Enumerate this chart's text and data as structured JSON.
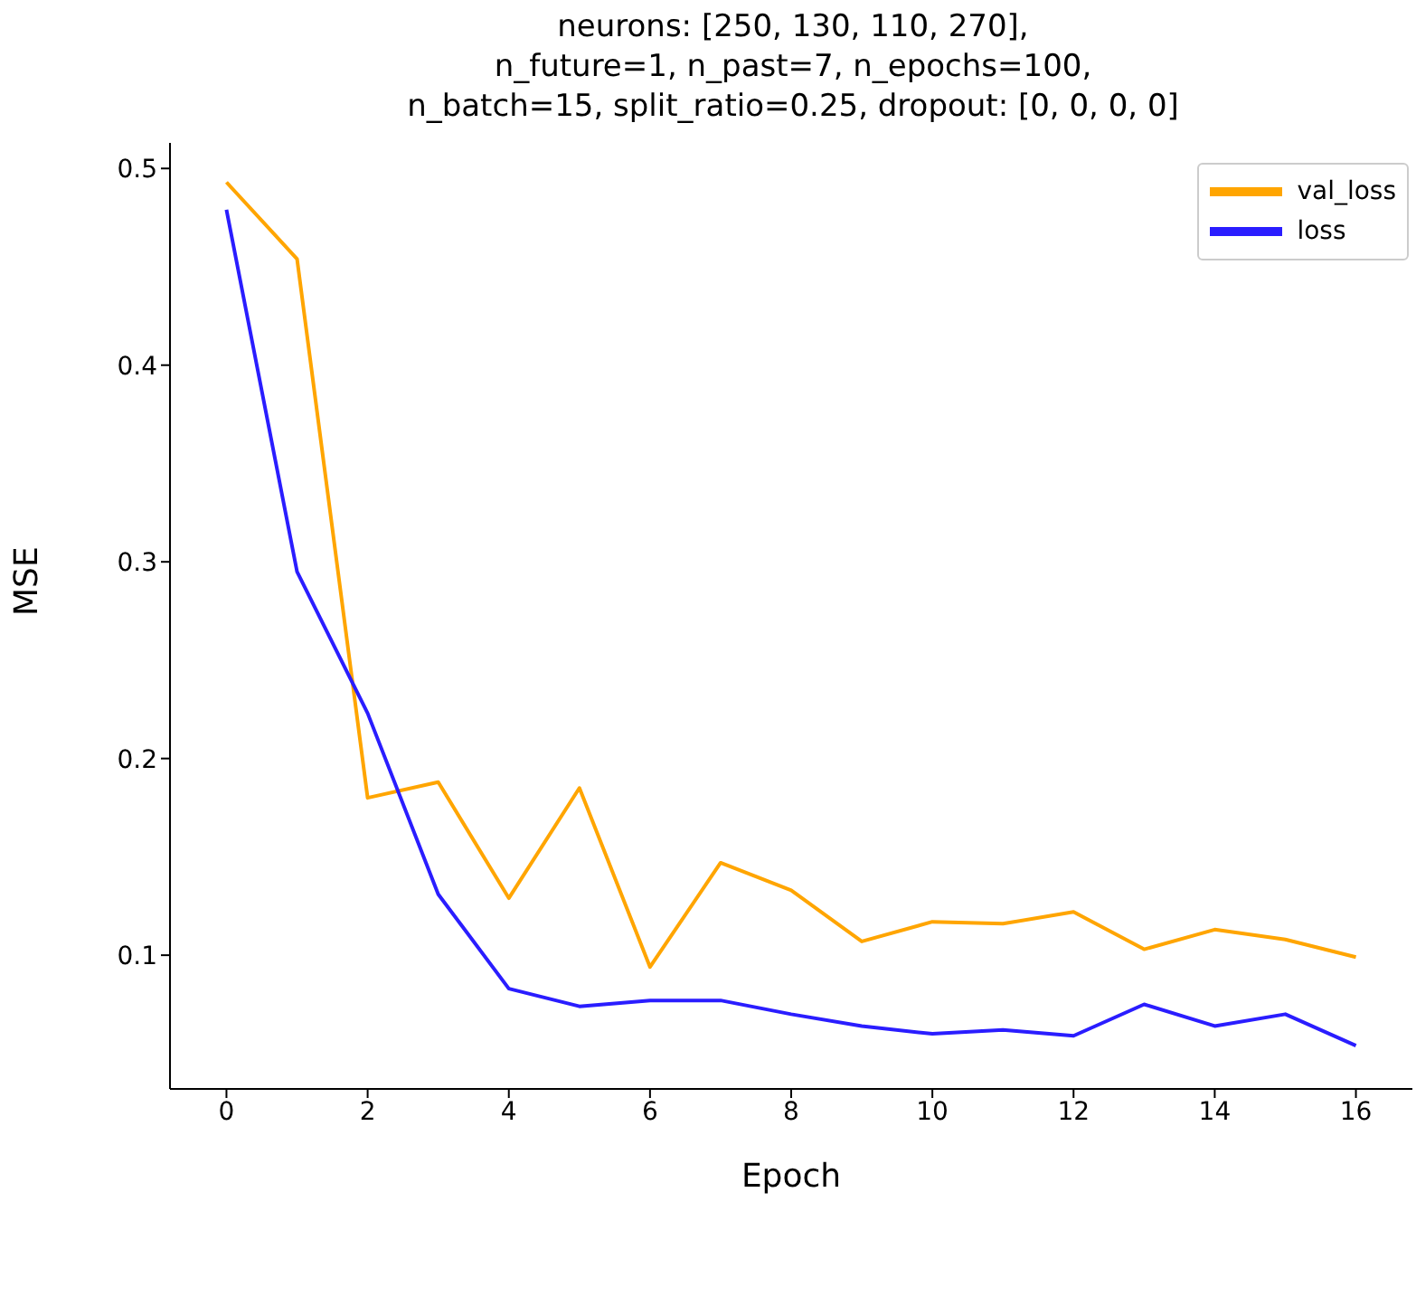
{
  "chart_data": {
    "type": "line",
    "title": "neurons: [250, 130, 110, 270],\nn_future=1, n_past=7, n_epochs=100,\nn_batch=15, split_ratio=0.25, dropout: [0, 0, 0, 0]",
    "xlabel": "Epoch",
    "ylabel": "MSE",
    "x": [
      0,
      1,
      2,
      3,
      4,
      5,
      6,
      7,
      8,
      9,
      10,
      11,
      12,
      13,
      14,
      15,
      16
    ],
    "xlim": [
      -0.8,
      16.8
    ],
    "xticks": [
      0,
      2,
      4,
      6,
      8,
      10,
      12,
      14,
      16
    ],
    "ylim": [
      0.032,
      0.513
    ],
    "yticks": [
      0.1,
      0.2,
      0.3,
      0.4,
      0.5
    ],
    "grid": false,
    "legend": "top right",
    "marker": "none",
    "line_style": "solid",
    "series": [
      {
        "name": "val_loss",
        "color": "#ffa500",
        "values": [
          0.493,
          0.454,
          0.18,
          0.188,
          0.129,
          0.185,
          0.094,
          0.147,
          0.133,
          0.107,
          0.117,
          0.116,
          0.122,
          0.103,
          0.113,
          0.108,
          0.099
        ]
      },
      {
        "name": "loss",
        "color": "#2a1dff",
        "values": [
          0.479,
          0.295,
          0.223,
          0.131,
          0.083,
          0.074,
          0.077,
          0.077,
          0.07,
          0.064,
          0.06,
          0.062,
          0.059,
          0.075,
          0.064,
          0.07,
          0.054
        ]
      }
    ]
  }
}
